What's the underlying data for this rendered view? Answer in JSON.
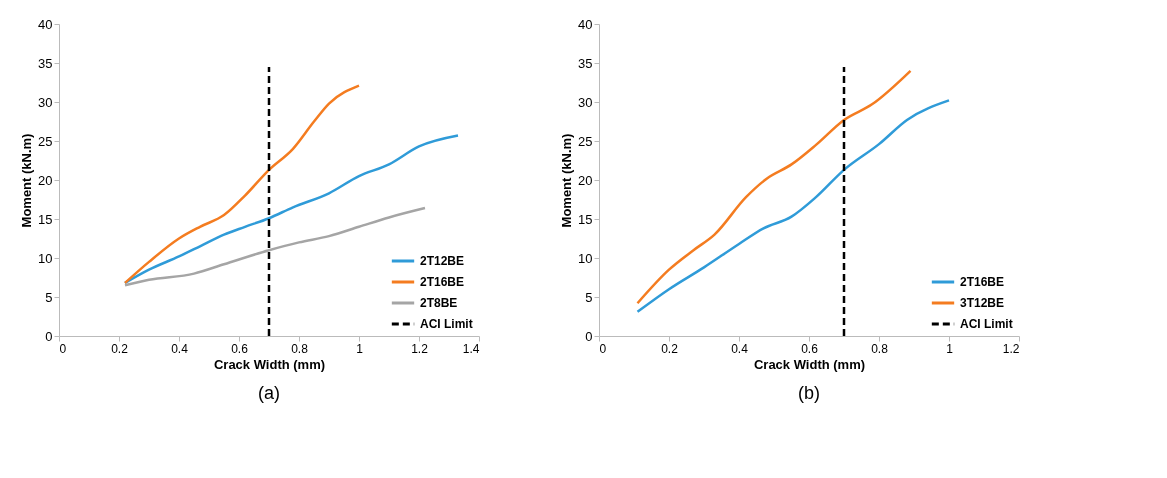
{
  "chart_data": [
    {
      "type": "line",
      "title": "(a)",
      "xlabel": "Crack Width (mm)",
      "ylabel": "Moment (kN.m)",
      "xlim": [
        0,
        1.4
      ],
      "xticks": [
        0,
        0.2,
        0.4,
        0.6,
        0.8,
        1,
        1.2,
        1.4
      ],
      "ylim": [
        0,
        40
      ],
      "yticks": [
        0,
        5,
        10,
        15,
        20,
        25,
        30,
        35,
        40
      ],
      "legend": "bottom right",
      "series": [
        {
          "name": "2T12BE",
          "color": "#2f9bd8",
          "line_style": "solid",
          "x": [
            0.22,
            0.3,
            0.4,
            0.47,
            0.55,
            0.62,
            0.7,
            0.78,
            0.9,
            1.0,
            1.1,
            1.2,
            1.33
          ],
          "values": [
            6.8,
            8.5,
            10.2,
            11.5,
            13,
            14,
            15.1,
            16.5,
            18.3,
            20.5,
            22,
            24.3,
            25.7
          ]
        },
        {
          "name": "2T16BE",
          "color": "#f47c20",
          "line_style": "solid",
          "x": [
            0.22,
            0.3,
            0.4,
            0.47,
            0.55,
            0.62,
            0.7,
            0.78,
            0.85,
            0.9,
            1.0
          ],
          "values": [
            6.8,
            9.5,
            12.5,
            14,
            15.5,
            18,
            21.3,
            24,
            27.5,
            29.8,
            32.1
          ]
        },
        {
          "name": "2T8BE",
          "color": "#a5a5a5",
          "line_style": "solid",
          "x": [
            0.22,
            0.3,
            0.45,
            0.55,
            0.7,
            0.8,
            0.9,
            1.0,
            1.1,
            1.22
          ],
          "values": [
            6.5,
            7.2,
            8,
            9.2,
            11,
            12,
            12.8,
            14,
            15.2,
            16.4
          ]
        },
        {
          "name": "ACI Limit",
          "color": "#000000",
          "line_style": "dashed",
          "x": [
            0.7,
            0.7
          ],
          "values": [
            0,
            34.5
          ]
        }
      ]
    },
    {
      "type": "line",
      "title": "(b)",
      "xlabel": "Crack Width (mm)",
      "ylabel": "Moment (kN.m)",
      "xlim": [
        0,
        1.2
      ],
      "xticks": [
        0,
        0.2,
        0.4,
        0.6,
        0.8,
        1,
        1.2
      ],
      "ylim": [
        0,
        40
      ],
      "yticks": [
        0,
        5,
        10,
        15,
        20,
        25,
        30,
        35,
        40
      ],
      "legend": "bottom right",
      "series": [
        {
          "name": "2T16BE",
          "color": "#2f9bd8",
          "line_style": "solid",
          "x": [
            0.11,
            0.2,
            0.3,
            0.4,
            0.47,
            0.55,
            0.62,
            0.7,
            0.8,
            0.88,
            1.0
          ],
          "values": [
            3.1,
            6,
            8.8,
            11.8,
            13.8,
            15.3,
            17.8,
            21.3,
            24.6,
            27.7,
            30.2
          ]
        },
        {
          "name": "3T12BE",
          "color": "#f47c20",
          "line_style": "solid",
          "x": [
            0.11,
            0.2,
            0.27,
            0.33,
            0.42,
            0.48,
            0.55,
            0.62,
            0.7,
            0.78,
            0.89
          ],
          "values": [
            4.2,
            8.5,
            11,
            13,
            17.8,
            20.2,
            22,
            24.5,
            27.7,
            29.7,
            34
          ]
        },
        {
          "name": "ACI Limit",
          "color": "#000000",
          "line_style": "dashed",
          "x": [
            0.7,
            0.7
          ],
          "values": [
            0,
            34.5
          ]
        }
      ]
    }
  ]
}
